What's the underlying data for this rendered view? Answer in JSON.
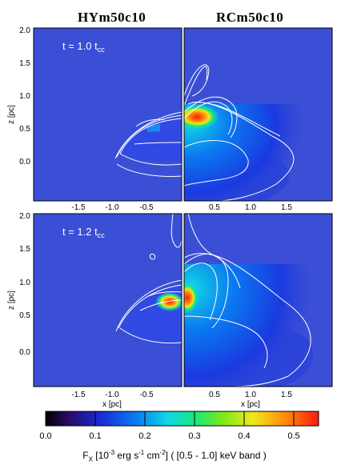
{
  "titles": {
    "left": "HYm50c10",
    "right": "RCm50c10"
  },
  "panels": [
    {
      "time_label": "t = 1.0 t",
      "time_sub": "cc"
    },
    {
      "time_label": "t = 1.2 t",
      "time_sub": "cc"
    }
  ],
  "axes": {
    "ylabel": "z [pc]",
    "xlabel": "x [pc]",
    "y_ticks": [
      "2.0",
      "1.5",
      "1.0",
      "0.5",
      "0.0"
    ],
    "x_ticks_left": [
      "-1.5",
      "-1.0",
      "-0.5"
    ],
    "x_ticks_right": [
      "0.5",
      "1.0",
      "1.5"
    ]
  },
  "colorbar": {
    "ticks": [
      "0.0",
      "0.1",
      "0.2",
      "0.3",
      "0.4",
      "0.5"
    ],
    "label": "F",
    "label_sub": "X",
    "label_unit_a": " [10",
    "label_exp1": "-3",
    "label_unit_b": " erg s",
    "label_exp2": "-1",
    "label_unit_c": " cm",
    "label_exp3": "-2",
    "label_unit_d": "] ( [0.5 - 1.0] keV band )",
    "colors": [
      "#000000",
      "#2a0a5e",
      "#1a2ad6",
      "#0a7af0",
      "#12d8e6",
      "#18e87a",
      "#7ee81a",
      "#f0e81a",
      "#ff8a0a",
      "#ff1a10"
    ]
  }
}
